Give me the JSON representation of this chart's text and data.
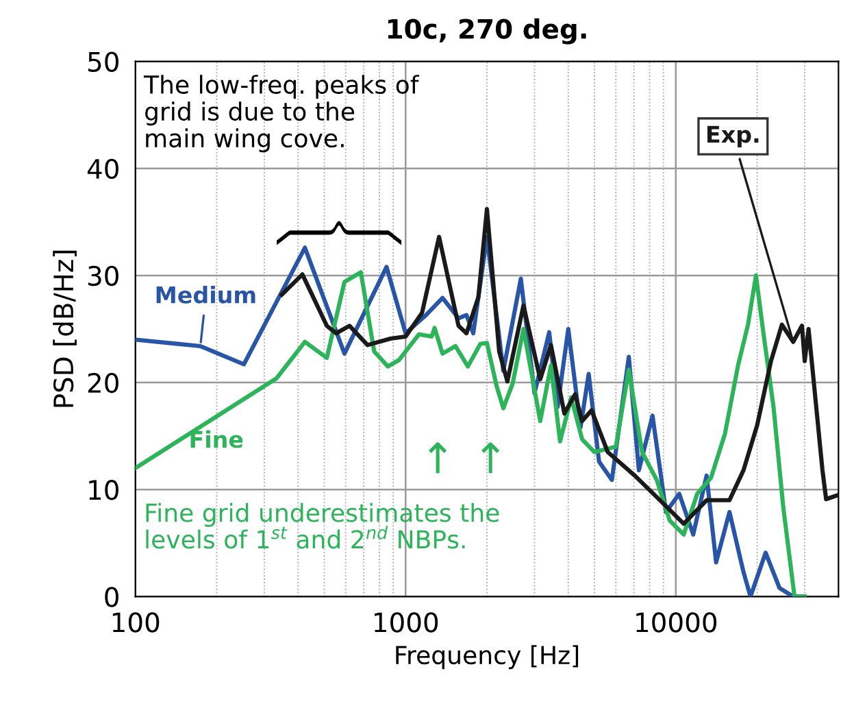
{
  "chart_data": {
    "type": "line",
    "title": "10c, 270 deg.",
    "xlabel": "Frequency [Hz]",
    "ylabel": "PSD [dB/Hz]",
    "log": "x",
    "xlim": [
      100,
      40000
    ],
    "xticks": [
      100,
      1000,
      10000
    ],
    "ylim": [
      0,
      50
    ],
    "yticks": [
      0,
      10,
      20,
      30,
      40,
      50
    ],
    "grid": true,
    "legend": false,
    "line_style": "solid",
    "marker": "none",
    "series": [
      {
        "name": "Medium",
        "color": "#2855a5",
        "x": [
          100,
          174,
          252,
          424,
          594,
          850,
          1000,
          1190,
          1370,
          1570,
          1680,
          1780,
          2000,
          2300,
          2670,
          3000,
          3400,
          3650,
          4000,
          4440,
          4760,
          5200,
          5800,
          6700,
          7300,
          8200,
          9200,
          10300,
          11600,
          13000,
          14100,
          15800,
          17800,
          18900,
          21500,
          24200,
          27200,
          30000
        ],
        "values": [
          24.0,
          23.4,
          21.7,
          32.6,
          22.7,
          30.8,
          24.6,
          26.3,
          27.9,
          26.0,
          26.3,
          24.6,
          33.6,
          21.1,
          29.7,
          19.0,
          24.7,
          17.7,
          25.0,
          15.8,
          20.8,
          12.6,
          10.9,
          22.4,
          11.8,
          16.9,
          7.9,
          9.6,
          5.8,
          11.3,
          3.2,
          7.9,
          2.3,
          0,
          4.1,
          0.8,
          0,
          0
        ]
      },
      {
        "name": "Fine",
        "color": "#2db45a",
        "x": [
          100,
          333,
          424,
          511,
          594,
          683,
          765,
          860,
          945,
          1120,
          1250,
          1280,
          1370,
          1530,
          1700,
          1890,
          2000,
          2170,
          2300,
          2490,
          2730,
          3150,
          3450,
          3730,
          4100,
          4500,
          5000,
          6000,
          6700,
          7500,
          8500,
          9500,
          10700,
          12000,
          13500,
          15200,
          17000,
          18500,
          19800,
          21000,
          23000,
          25000,
          27500,
          30000
        ],
        "values": [
          12.0,
          20.4,
          23.8,
          22.3,
          29.4,
          30.3,
          22.9,
          21.5,
          22.1,
          24.5,
          24.3,
          25.1,
          22.7,
          23.4,
          21.5,
          23.6,
          23.7,
          19.7,
          17.6,
          19.9,
          25.0,
          16.4,
          21.6,
          14.5,
          18.6,
          14.7,
          13.5,
          14.0,
          21.2,
          13.5,
          10.9,
          7.1,
          5.8,
          9.6,
          11.1,
          15.2,
          21.6,
          25.4,
          30.0,
          25.0,
          17.7,
          8.3,
          0,
          0
        ]
      },
      {
        "name": "Exp.",
        "color": "#1a1a1a",
        "x": [
          348,
          415,
          511,
          553,
          620,
          723,
          880,
          1000,
          1150,
          1330,
          1570,
          1680,
          1860,
          2000,
          2220,
          2380,
          2730,
          3150,
          3450,
          3870,
          4240,
          4500,
          4880,
          5600,
          7050,
          8900,
          10700,
          13000,
          15800,
          17800,
          20000,
          22500,
          24700,
          27200,
          29300,
          30000,
          31000,
          34900,
          36000,
          40000
        ],
        "values": [
          28.2,
          30.1,
          25.3,
          24.6,
          25.3,
          23.5,
          24.1,
          24.3,
          26.5,
          33.6,
          25.3,
          24.6,
          28.0,
          36.2,
          22.9,
          20.1,
          27.2,
          20.3,
          23.5,
          17.1,
          18.9,
          16.4,
          17.4,
          13.5,
          11.3,
          8.8,
          6.8,
          9.0,
          9.0,
          11.8,
          16.0,
          22.0,
          25.4,
          23.8,
          25.3,
          22.0,
          25.0,
          11.8,
          9.1,
          9.5
        ]
      }
    ],
    "annotations": [
      "The low-freq. peaks of\ngrid is due to the\nmain wing cove.",
      "Fine grid underestimates the\nlevels of 1$^{st}$ and 2$^{nd}$ NBPs.",
      "↑",
      "↑"
    ]
  }
}
